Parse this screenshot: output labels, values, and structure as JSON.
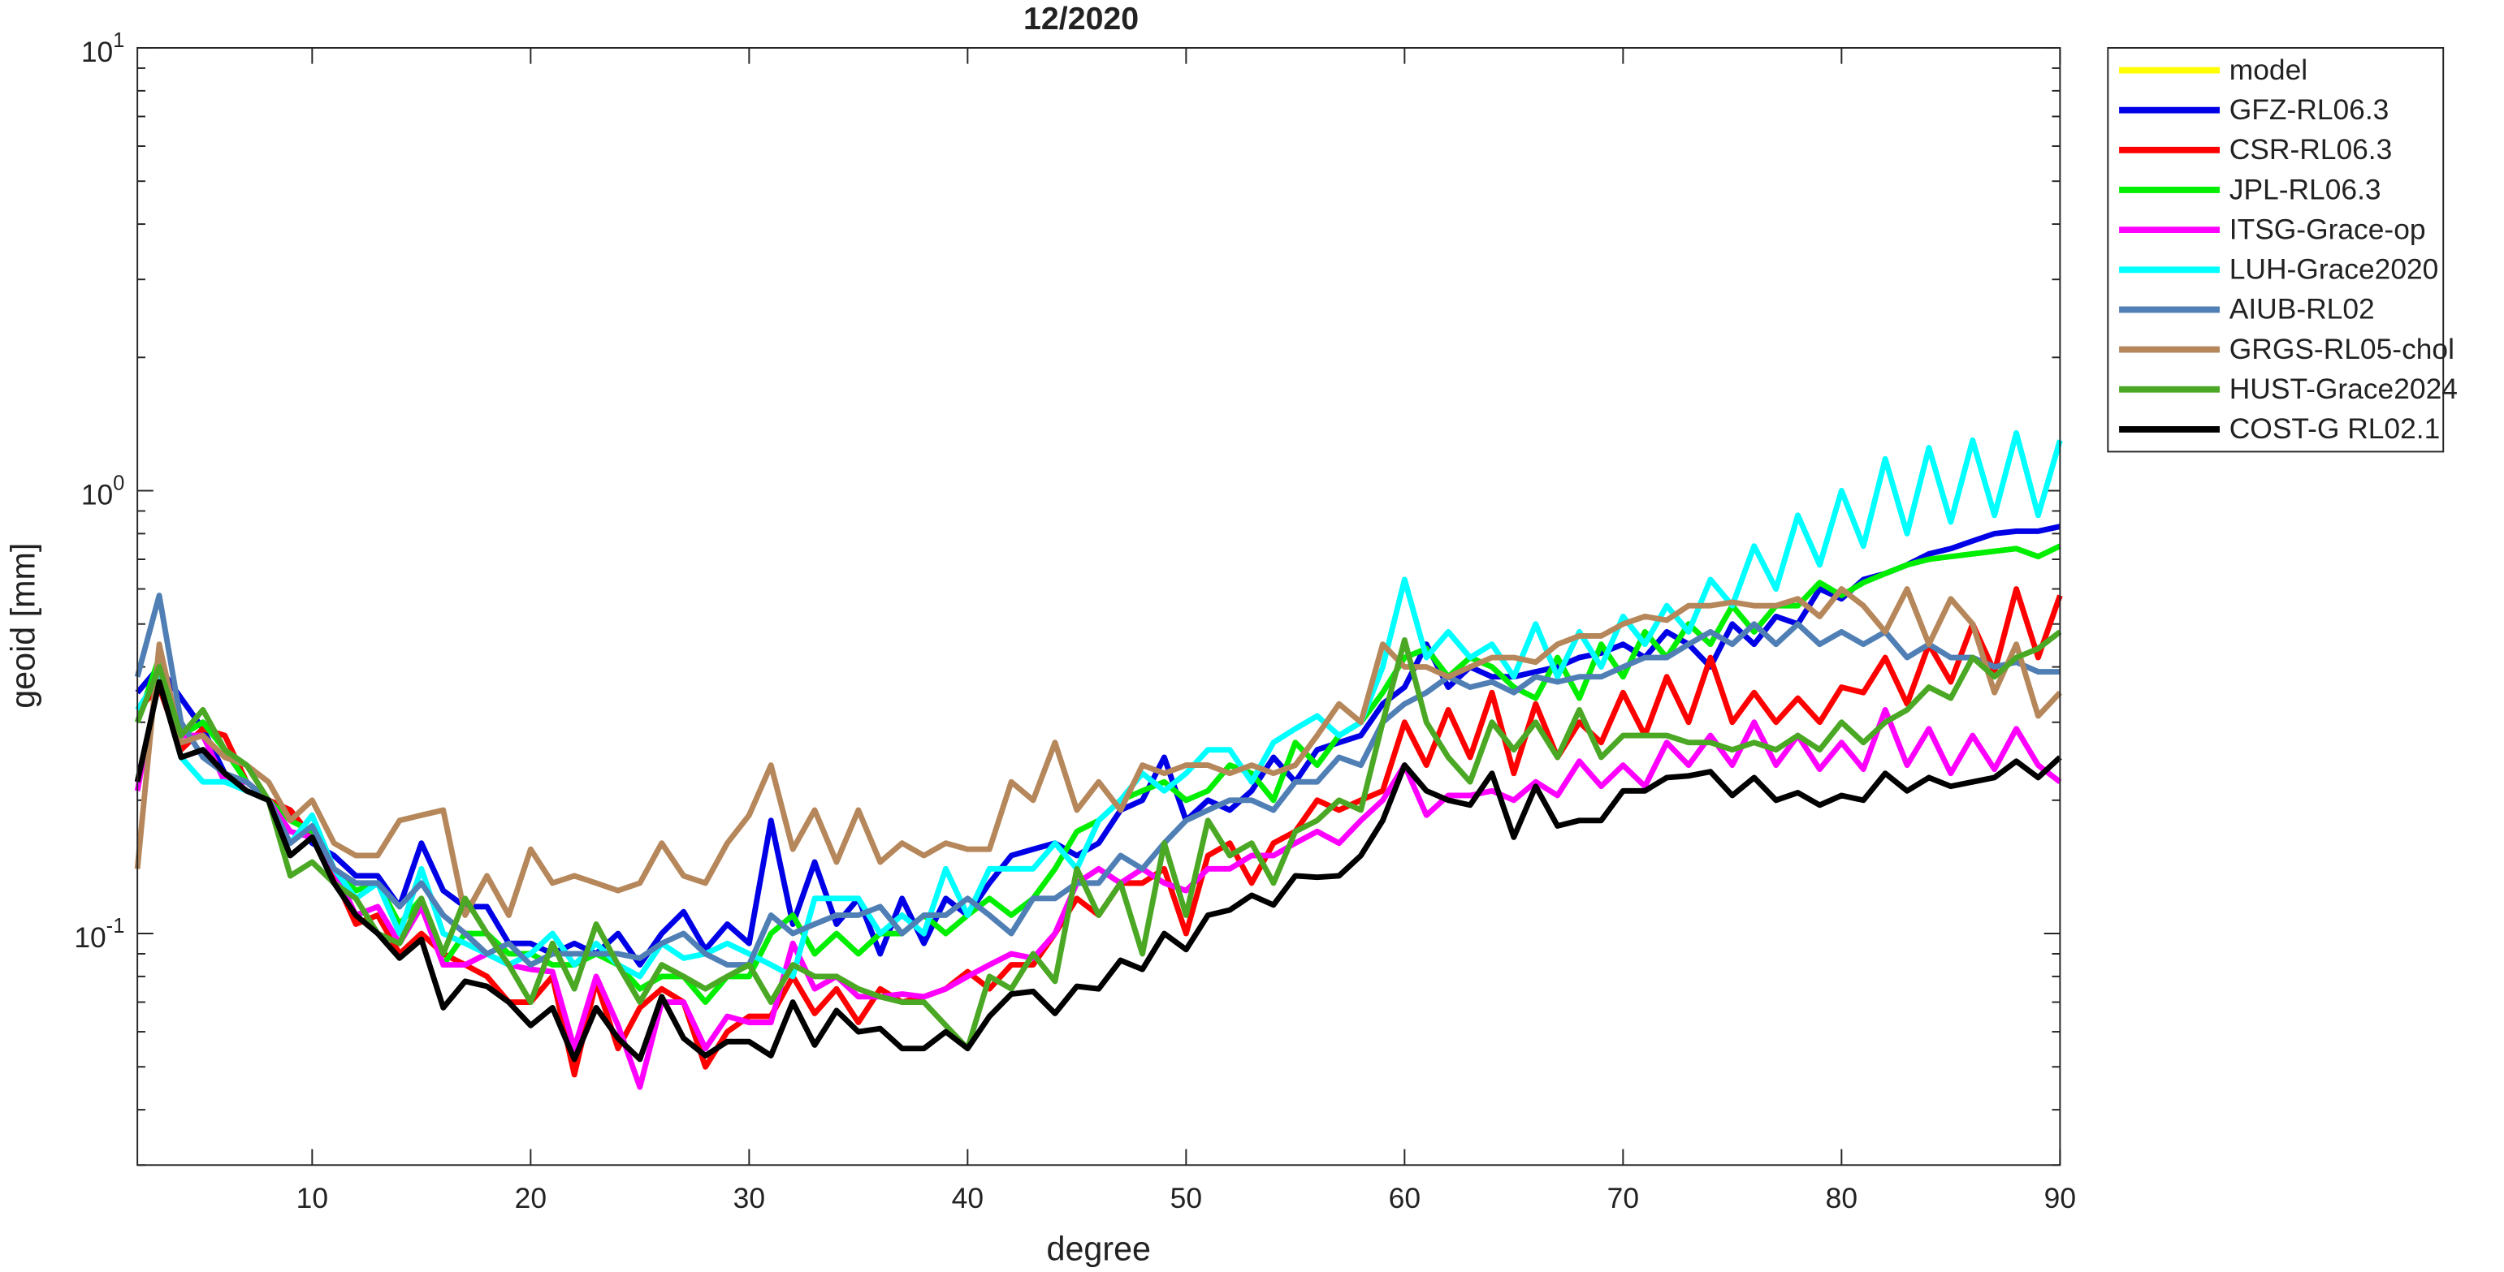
{
  "chart_data": {
    "type": "line",
    "title": "12/2020",
    "x_label": "degree",
    "y_label": "geoid [mm]",
    "log_y": true,
    "grid": false,
    "legend": "outside-right-top",
    "xlim": [
      2,
      90
    ],
    "xticks": [
      10,
      20,
      30,
      40,
      50,
      60,
      70,
      80,
      90
    ],
    "ylim": [
      0.03,
      10
    ],
    "yticks": [
      {
        "value": 0.1,
        "label": "10^-1"
      },
      {
        "value": 1,
        "label": "10^0"
      },
      {
        "value": 10,
        "label": "10^1"
      }
    ],
    "yminorticks": [
      0.03,
      0.04,
      0.05,
      0.06,
      0.07,
      0.08,
      0.09,
      0.2,
      0.3,
      0.4,
      0.5,
      0.6,
      0.7,
      0.8,
      0.9,
      2,
      3,
      4,
      5,
      6,
      7,
      8,
      9
    ],
    "x": [
      2,
      3,
      4,
      5,
      6,
      7,
      8,
      9,
      10,
      11,
      12,
      13,
      14,
      15,
      16,
      17,
      18,
      19,
      20,
      21,
      22,
      23,
      24,
      25,
      26,
      27,
      28,
      29,
      30,
      31,
      32,
      33,
      34,
      35,
      36,
      37,
      38,
      39,
      40,
      41,
      42,
      43,
      44,
      45,
      46,
      47,
      48,
      49,
      50,
      51,
      52,
      53,
      54,
      55,
      56,
      57,
      58,
      59,
      60,
      61,
      62,
      63,
      64,
      65,
      66,
      67,
      68,
      69,
      70,
      71,
      72,
      73,
      74,
      75,
      76,
      77,
      78,
      79,
      80,
      81,
      82,
      83,
      84,
      85,
      86,
      87,
      88,
      89,
      90
    ],
    "series": [
      {
        "name": "model",
        "color": "#ffff00"
      },
      {
        "name": "GFZ-RL06.3",
        "color": "#0000e6",
        "values": [
          0.35,
          0.4,
          0.34,
          0.29,
          0.23,
          0.21,
          0.2,
          0.19,
          0.16,
          0.15,
          0.135,
          0.135,
          0.115,
          0.16,
          0.125,
          0.115,
          0.115,
          0.095,
          0.095,
          0.09,
          0.095,
          0.09,
          0.1,
          0.085,
          0.1,
          0.112,
          0.092,
          0.105,
          0.095,
          0.18,
          0.105,
          0.145,
          0.105,
          0.12,
          0.09,
          0.12,
          0.095,
          0.12,
          0.11,
          0.13,
          0.15,
          0.155,
          0.16,
          0.15,
          0.16,
          0.19,
          0.2,
          0.25,
          0.18,
          0.2,
          0.19,
          0.21,
          0.25,
          0.22,
          0.26,
          0.27,
          0.28,
          0.33,
          0.36,
          0.45,
          0.36,
          0.4,
          0.38,
          0.38,
          0.39,
          0.4,
          0.42,
          0.43,
          0.45,
          0.42,
          0.48,
          0.45,
          0.4,
          0.5,
          0.45,
          0.52,
          0.5,
          0.6,
          0.57,
          0.63,
          0.65,
          0.68,
          0.72,
          0.74,
          0.77,
          0.8,
          0.81,
          0.81,
          0.83
        ]
      },
      {
        "name": "CSR-RL06.3",
        "color": "#ff0000",
        "values": [
          0.32,
          0.36,
          0.26,
          0.29,
          0.28,
          0.22,
          0.2,
          0.19,
          0.165,
          0.135,
          0.105,
          0.11,
          0.09,
          0.1,
          0.09,
          0.085,
          0.08,
          0.07,
          0.07,
          0.08,
          0.048,
          0.078,
          0.055,
          0.068,
          0.075,
          0.07,
          0.05,
          0.06,
          0.065,
          0.065,
          0.08,
          0.066,
          0.075,
          0.063,
          0.075,
          0.07,
          0.072,
          0.075,
          0.082,
          0.075,
          0.085,
          0.085,
          0.1,
          0.12,
          0.11,
          0.13,
          0.13,
          0.14,
          0.1,
          0.15,
          0.16,
          0.13,
          0.16,
          0.17,
          0.2,
          0.19,
          0.2,
          0.21,
          0.3,
          0.24,
          0.32,
          0.25,
          0.35,
          0.23,
          0.33,
          0.25,
          0.3,
          0.27,
          0.35,
          0.28,
          0.38,
          0.3,
          0.42,
          0.3,
          0.35,
          0.3,
          0.34,
          0.3,
          0.36,
          0.35,
          0.42,
          0.33,
          0.45,
          0.37,
          0.5,
          0.39,
          0.6,
          0.42,
          0.58
        ]
      },
      {
        "name": "JPL-RL06.3",
        "color": "#00ee00",
        "values": [
          0.3,
          0.42,
          0.28,
          0.3,
          0.26,
          0.22,
          0.2,
          0.18,
          0.17,
          0.14,
          0.125,
          0.13,
          0.105,
          0.12,
          0.085,
          0.1,
          0.1,
          0.09,
          0.09,
          0.085,
          0.085,
          0.09,
          0.085,
          0.075,
          0.08,
          0.08,
          0.07,
          0.08,
          0.08,
          0.1,
          0.11,
          0.09,
          0.1,
          0.09,
          0.1,
          0.1,
          0.11,
          0.1,
          0.11,
          0.12,
          0.11,
          0.12,
          0.14,
          0.17,
          0.18,
          0.2,
          0.21,
          0.22,
          0.2,
          0.21,
          0.24,
          0.23,
          0.2,
          0.27,
          0.24,
          0.28,
          0.3,
          0.35,
          0.42,
          0.44,
          0.38,
          0.42,
          0.4,
          0.36,
          0.34,
          0.42,
          0.34,
          0.45,
          0.38,
          0.48,
          0.42,
          0.5,
          0.45,
          0.55,
          0.48,
          0.55,
          0.55,
          0.62,
          0.58,
          0.62,
          0.65,
          0.68,
          0.7,
          0.71,
          0.72,
          0.73,
          0.74,
          0.71,
          0.75
        ]
      },
      {
        "name": "ITSG-Grace-op",
        "color": "#ff00ff",
        "values": [
          0.21,
          0.38,
          0.28,
          0.28,
          0.22,
          0.22,
          0.2,
          0.17,
          0.165,
          0.14,
          0.11,
          0.115,
          0.095,
          0.115,
          0.085,
          0.085,
          0.09,
          0.085,
          0.083,
          0.082,
          0.055,
          0.08,
          0.062,
          0.045,
          0.07,
          0.07,
          0.055,
          0.065,
          0.063,
          0.063,
          0.095,
          0.075,
          0.08,
          0.072,
          0.072,
          0.073,
          0.072,
          0.075,
          0.08,
          0.085,
          0.09,
          0.088,
          0.1,
          0.13,
          0.14,
          0.13,
          0.14,
          0.13,
          0.125,
          0.14,
          0.14,
          0.15,
          0.15,
          0.16,
          0.17,
          0.16,
          0.18,
          0.2,
          0.24,
          0.185,
          0.205,
          0.205,
          0.21,
          0.2,
          0.22,
          0.205,
          0.245,
          0.215,
          0.24,
          0.215,
          0.27,
          0.24,
          0.28,
          0.24,
          0.3,
          0.24,
          0.28,
          0.235,
          0.27,
          0.235,
          0.32,
          0.24,
          0.29,
          0.23,
          0.28,
          0.235,
          0.29,
          0.24,
          0.22
        ]
      },
      {
        "name": "LUH-Grace2020",
        "color": "#00ffff",
        "values": [
          0.32,
          0.38,
          0.25,
          0.22,
          0.22,
          0.21,
          0.2,
          0.16,
          0.185,
          0.14,
          0.12,
          0.13,
          0.1,
          0.14,
          0.1,
          0.095,
          0.09,
          0.085,
          0.09,
          0.1,
          0.085,
          0.095,
          0.085,
          0.08,
          0.095,
          0.088,
          0.09,
          0.095,
          0.09,
          0.085,
          0.08,
          0.12,
          0.12,
          0.12,
          0.1,
          0.11,
          0.1,
          0.14,
          0.11,
          0.14,
          0.14,
          0.14,
          0.16,
          0.14,
          0.18,
          0.2,
          0.23,
          0.21,
          0.23,
          0.26,
          0.26,
          0.22,
          0.27,
          0.29,
          0.31,
          0.28,
          0.3,
          0.4,
          0.63,
          0.42,
          0.48,
          0.42,
          0.45,
          0.38,
          0.5,
          0.38,
          0.48,
          0.4,
          0.52,
          0.45,
          0.55,
          0.48,
          0.63,
          0.55,
          0.75,
          0.6,
          0.88,
          0.68,
          1.0,
          0.75,
          1.18,
          0.8,
          1.25,
          0.85,
          1.3,
          0.88,
          1.35,
          0.88,
          1.3
        ]
      },
      {
        "name": "AIUB-RL02",
        "color": "#4f7fb5",
        "values": [
          0.38,
          0.58,
          0.3,
          0.25,
          0.23,
          0.22,
          0.2,
          0.16,
          0.175,
          0.14,
          0.13,
          0.13,
          0.115,
          0.13,
          0.11,
          0.1,
          0.09,
          0.095,
          0.085,
          0.09,
          0.09,
          0.09,
          0.09,
          0.088,
          0.095,
          0.1,
          0.09,
          0.085,
          0.085,
          0.11,
          0.1,
          0.105,
          0.11,
          0.11,
          0.115,
          0.1,
          0.11,
          0.11,
          0.12,
          0.11,
          0.1,
          0.12,
          0.12,
          0.13,
          0.13,
          0.15,
          0.14,
          0.16,
          0.18,
          0.19,
          0.2,
          0.2,
          0.19,
          0.22,
          0.22,
          0.25,
          0.24,
          0.3,
          0.33,
          0.35,
          0.38,
          0.36,
          0.37,
          0.35,
          0.38,
          0.37,
          0.38,
          0.38,
          0.4,
          0.42,
          0.42,
          0.45,
          0.48,
          0.45,
          0.5,
          0.45,
          0.5,
          0.45,
          0.48,
          0.45,
          0.48,
          0.42,
          0.45,
          0.42,
          0.42,
          0.4,
          0.41,
          0.39,
          0.39
        ]
      },
      {
        "name": "GRGS-RL05-chol",
        "color": "#b5875a",
        "values": [
          0.14,
          0.45,
          0.27,
          0.28,
          0.25,
          0.24,
          0.22,
          0.18,
          0.2,
          0.16,
          0.15,
          0.15,
          0.18,
          0.185,
          0.19,
          0.11,
          0.135,
          0.11,
          0.155,
          0.13,
          0.135,
          0.13,
          0.125,
          0.13,
          0.16,
          0.135,
          0.13,
          0.16,
          0.185,
          0.24,
          0.155,
          0.19,
          0.145,
          0.19,
          0.145,
          0.16,
          0.15,
          0.16,
          0.155,
          0.155,
          0.22,
          0.2,
          0.27,
          0.19,
          0.22,
          0.19,
          0.24,
          0.23,
          0.24,
          0.24,
          0.23,
          0.24,
          0.23,
          0.24,
          0.28,
          0.33,
          0.3,
          0.45,
          0.4,
          0.4,
          0.38,
          0.4,
          0.42,
          0.42,
          0.41,
          0.45,
          0.47,
          0.47,
          0.5,
          0.52,
          0.51,
          0.55,
          0.55,
          0.56,
          0.55,
          0.55,
          0.57,
          0.52,
          0.6,
          0.55,
          0.48,
          0.6,
          0.45,
          0.57,
          0.5,
          0.35,
          0.45,
          0.31,
          0.35
        ]
      },
      {
        "name": "HUST-Grace2024",
        "color": "#4aa824",
        "values": [
          0.3,
          0.4,
          0.28,
          0.32,
          0.26,
          0.24,
          0.2,
          0.135,
          0.145,
          0.13,
          0.12,
          0.1,
          0.095,
          0.12,
          0.09,
          0.12,
          0.1,
          0.085,
          0.07,
          0.095,
          0.075,
          0.105,
          0.085,
          0.07,
          0.085,
          0.08,
          0.075,
          0.08,
          0.085,
          0.07,
          0.085,
          0.08,
          0.08,
          0.075,
          0.072,
          0.07,
          0.07,
          0.062,
          0.055,
          0.08,
          0.075,
          0.09,
          0.078,
          0.14,
          0.11,
          0.13,
          0.09,
          0.16,
          0.11,
          0.18,
          0.15,
          0.16,
          0.13,
          0.17,
          0.18,
          0.2,
          0.19,
          0.3,
          0.46,
          0.3,
          0.25,
          0.22,
          0.3,
          0.26,
          0.3,
          0.25,
          0.32,
          0.25,
          0.28,
          0.28,
          0.28,
          0.27,
          0.27,
          0.26,
          0.27,
          0.26,
          0.28,
          0.26,
          0.3,
          0.27,
          0.3,
          0.32,
          0.36,
          0.34,
          0.42,
          0.38,
          0.42,
          0.44,
          0.48
        ]
      },
      {
        "name": "COST-G RL02.1",
        "color": "#000000",
        "values": [
          0.22,
          0.37,
          0.25,
          0.26,
          0.23,
          0.21,
          0.2,
          0.15,
          0.165,
          0.13,
          0.11,
          0.1,
          0.088,
          0.097,
          0.068,
          0.078,
          0.076,
          0.07,
          0.062,
          0.068,
          0.052,
          0.068,
          0.058,
          0.052,
          0.072,
          0.058,
          0.053,
          0.057,
          0.057,
          0.053,
          0.07,
          0.056,
          0.067,
          0.06,
          0.061,
          0.055,
          0.055,
          0.06,
          0.055,
          0.065,
          0.073,
          0.074,
          0.066,
          0.076,
          0.075,
          0.087,
          0.083,
          0.1,
          0.092,
          0.11,
          0.113,
          0.122,
          0.116,
          0.135,
          0.134,
          0.135,
          0.15,
          0.18,
          0.24,
          0.21,
          0.2,
          0.195,
          0.23,
          0.165,
          0.215,
          0.175,
          0.18,
          0.18,
          0.21,
          0.21,
          0.225,
          0.227,
          0.232,
          0.205,
          0.225,
          0.2,
          0.208,
          0.195,
          0.205,
          0.2,
          0.23,
          0.21,
          0.225,
          0.215,
          0.22,
          0.225,
          0.245,
          0.225,
          0.25
        ]
      }
    ]
  }
}
